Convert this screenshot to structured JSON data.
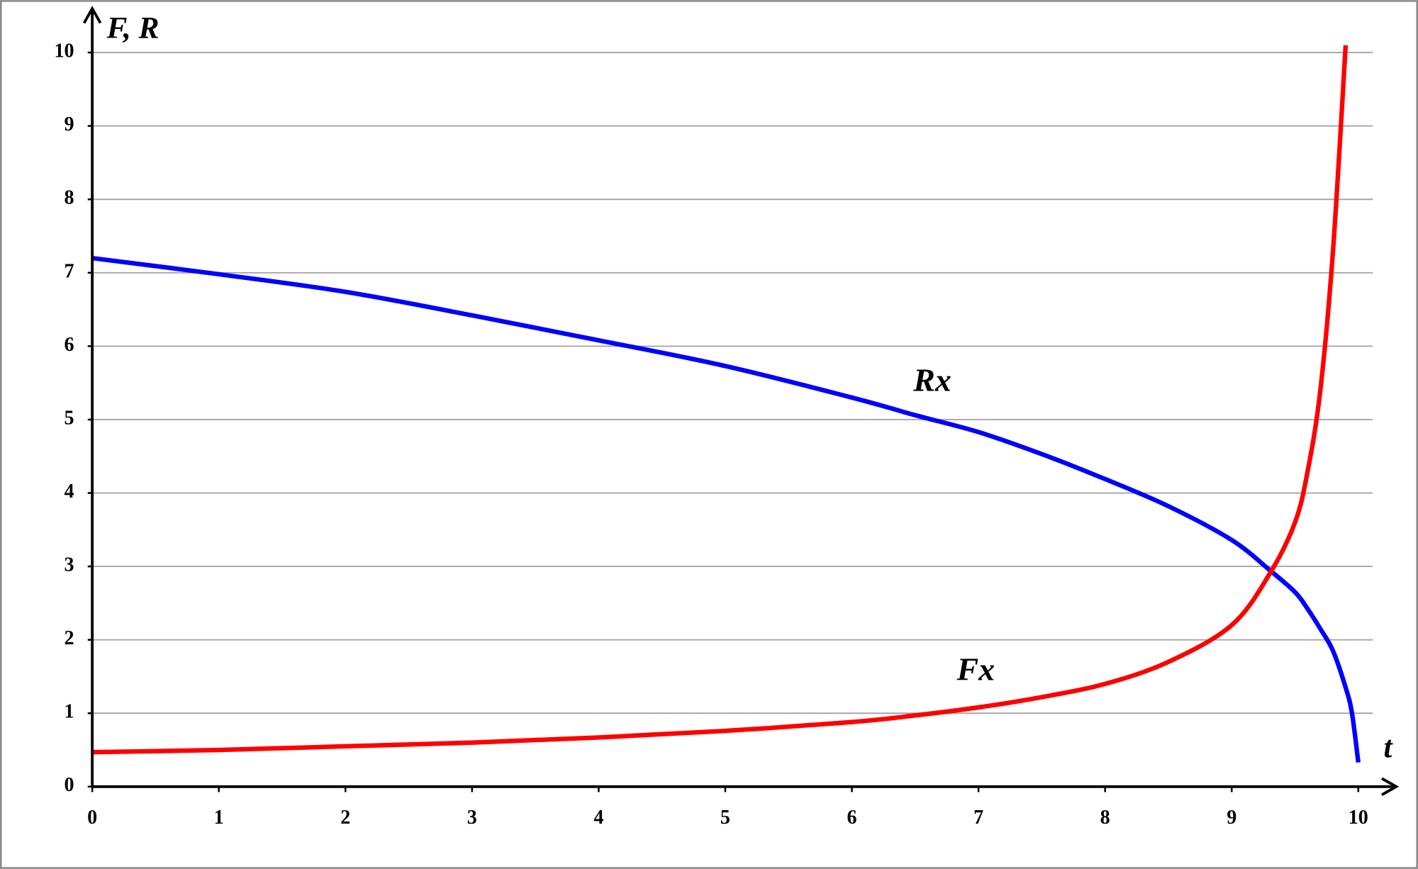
{
  "chart_data": {
    "type": "line",
    "y_label": "F, R",
    "x_label": "t",
    "x": [
      0,
      1,
      2,
      3,
      4,
      5,
      6,
      6.5,
      7,
      7.5,
      8,
      8.5,
      9,
      9.3,
      9.5,
      9.6,
      9.7,
      9.8,
      9.9,
      9.95,
      10
    ],
    "series": [
      {
        "name": "Rx",
        "color": "#0000ff",
        "values": [
          7.2,
          6.98,
          6.74,
          6.42,
          6.08,
          5.73,
          5.3,
          5.06,
          4.83,
          4.53,
          4.19,
          3.82,
          3.36,
          2.95,
          2.65,
          2.42,
          2.15,
          1.85,
          1.35,
          1.0,
          0.33
        ]
      },
      {
        "name": "Fx",
        "color": "#ff0000",
        "values": [
          0.47,
          0.5,
          0.55,
          0.6,
          0.67,
          0.76,
          0.88,
          0.97,
          1.08,
          1.22,
          1.4,
          1.7,
          2.2,
          2.9,
          3.6,
          4.3,
          5.4,
          7.3,
          10.1,
          null,
          null
        ]
      }
    ],
    "xlim": [
      0,
      10.3
    ],
    "ylim": [
      0,
      10.6
    ],
    "xticks": [
      0,
      1,
      2,
      3,
      4,
      5,
      6,
      7,
      8,
      9,
      10
    ],
    "yticks": [
      0,
      1,
      2,
      3,
      4,
      5,
      6,
      7,
      8,
      9,
      10
    ],
    "grid": true
  }
}
